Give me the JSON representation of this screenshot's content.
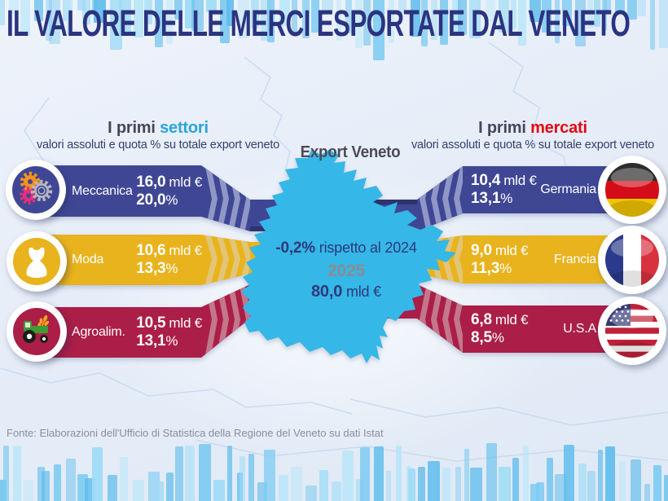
{
  "title": "IL VALORE DELLE MERCI ESPORTATE DAL VENETO",
  "left_header": {
    "prefix": "I primi ",
    "highlight": "settori",
    "subtitle": "valori assoluti e quota % su totale export veneto"
  },
  "right_header": {
    "prefix": "I primi ",
    "highlight": "mercati",
    "subtitle": "valori assoluti e quota % su totale export veneto"
  },
  "center": {
    "map_label": "Export Veneto",
    "delta": "-0,2%",
    "delta_rest": " rispetto al 2024",
    "year": "2025",
    "total": "80,0",
    "total_unit": "mld €",
    "region": "Veneto"
  },
  "sectors": [
    {
      "label": "Meccanica",
      "value": "16,0",
      "unit": "mld €",
      "share": "20,0",
      "share_unit": "%",
      "color": "#3f4795",
      "icon": "gears-icon"
    },
    {
      "label": "Moda",
      "value": "10,6",
      "unit": "mld €",
      "share": "13,3",
      "share_unit": "%",
      "color": "#e9b31d",
      "icon": "dress-icon"
    },
    {
      "label": "Agroalim.",
      "value": "10,5",
      "unit": "mld €",
      "share": "13,1",
      "share_unit": "%",
      "color": "#ab1e47",
      "icon": "tractor-icon"
    }
  ],
  "markets": [
    {
      "label": "Germania",
      "value": "10,4",
      "unit": "mld €",
      "share": "13,1",
      "share_unit": "%",
      "color": "#3f4795",
      "icon": "germany-flag-icon"
    },
    {
      "label": "Francia",
      "value": "9,0",
      "unit": "mld €",
      "share": "11,3",
      "share_unit": "%",
      "color": "#e9b31d",
      "icon": "france-flag-icon"
    },
    {
      "label": "U.S.A",
      "value": "6,8",
      "unit": "mld €",
      "share": "8,5",
      "share_unit": "%",
      "color": "#ab1e47",
      "icon": "usa-flag-icon"
    }
  ],
  "footer": "Fonte: Elaborazioni dell'Ufficio di Statistica della Regione del Veneto su dati Istat",
  "colors": {
    "band_blue": "#3f4795",
    "band_yellow": "#e9b31d",
    "band_crimson": "#ab1e47",
    "map_cyan": "#35b7e7",
    "title_blue": "#2b3480",
    "highlight_cyan": "#29a4dd",
    "highlight_red": "#e30713",
    "decor_bars_blue": "#7ecbf1",
    "navy_text": "#2d3a7c",
    "gray_year": "#8b8b93"
  },
  "chart_data": {
    "type": "table",
    "title": "IL VALORE DELLE MERCI ESPORTATE DAL VENETO",
    "total": {
      "year": 2025,
      "export_value_mld_eur": 80.0,
      "change_vs_2024_pct": -0.2
    },
    "series": [
      {
        "name": "I primi settori",
        "categories": [
          "Meccanica",
          "Moda",
          "Agroalim."
        ],
        "values_mld_eur": [
          16.0,
          10.6,
          10.5
        ],
        "share_pct_of_total_export": [
          20.0,
          13.3,
          13.1
        ]
      },
      {
        "name": "I primi mercati",
        "categories": [
          "Germania",
          "Francia",
          "U.S.A"
        ],
        "values_mld_eur": [
          10.4,
          9.0,
          6.8
        ],
        "share_pct_of_total_export": [
          13.1,
          11.3,
          8.5
        ]
      }
    ],
    "source": "Fonte: Elaborazioni dell'Ufficio di Statistica della Regione del Veneto su dati Istat"
  }
}
